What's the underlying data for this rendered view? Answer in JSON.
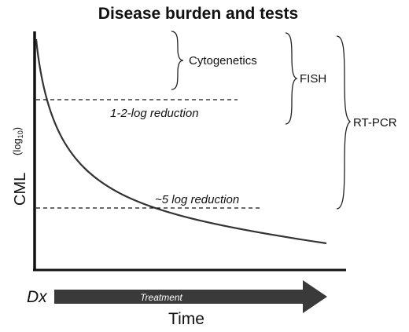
{
  "title": "Disease burden and tests",
  "y_axis": {
    "label": "CML",
    "unit": "(log",
    "unit_subscript": "10",
    "unit_close": ")"
  },
  "x_axis": {
    "start_label": "Dx",
    "arrow_label": "Treatment",
    "label": "Time"
  },
  "thresholds": [
    {
      "label": "1-2-log reduction"
    },
    {
      "label": "~5 log reduction"
    }
  ],
  "tests": [
    {
      "label": "Cytogenetics"
    },
    {
      "label": "FISH"
    },
    {
      "label": "RT-PCR"
    }
  ],
  "colors": {
    "ink": "#111111",
    "arrow_fill": "#3a3a3a",
    "arrow_text": "#ffffff",
    "curve": "#333333"
  }
}
